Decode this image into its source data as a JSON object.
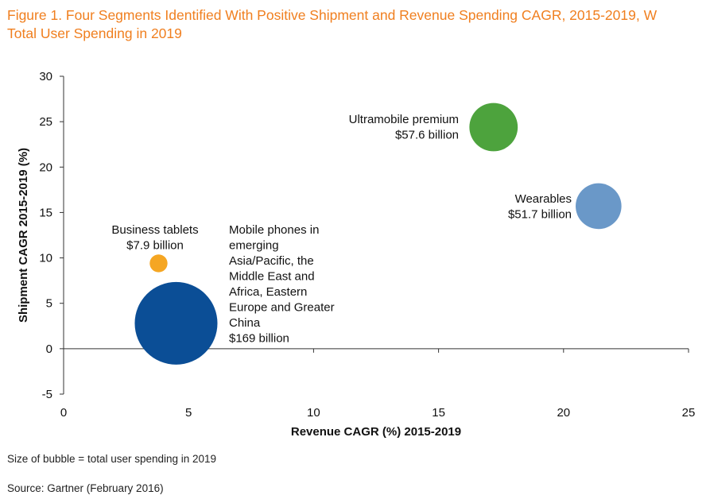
{
  "title_line1": "Figure 1. Four Segments Identified With Positive Shipment and Revenue Spending CAGR, 2015-2019, W",
  "title_line2": "Total User Spending in 2019",
  "note": "Size of bubble = total user spending in 2019",
  "source": "Source: Gartner (February 2016)",
  "chart_data": {
    "type": "scatter",
    "subtype": "bubble",
    "xlabel": "Revenue CAGR (%) 2015-2019",
    "ylabel": "Shipment CAGR 2015-2019 (%)",
    "xlim": [
      0,
      25
    ],
    "ylim": [
      -5,
      30
    ],
    "xticks": [
      "0",
      "5",
      "10",
      "15",
      "20",
      "25"
    ],
    "yticks": [
      "-5",
      "0",
      "5",
      "10",
      "15",
      "20",
      "25",
      "30"
    ],
    "grid": false,
    "series": [
      {
        "label_lines": [
          "Business tablets",
          "$7.9 billion"
        ],
        "x": 3.8,
        "y": 9.4,
        "size": 7.9,
        "color": "#f5a623"
      },
      {
        "label_lines": [
          "Mobile phones in",
          "emerging",
          "Asia/Pacific, the",
          "Middle East and",
          "Africa, Eastern",
          "Europe and Greater",
          "China",
          "$169 billion"
        ],
        "x": 4.5,
        "y": 2.8,
        "size": 169,
        "color": "#0b4e96"
      },
      {
        "label_lines": [
          "Ultramobile premium",
          "$57.6 billion"
        ],
        "x": 17.2,
        "y": 24.4,
        "size": 57.6,
        "color": "#4da33d"
      },
      {
        "label_lines": [
          "Wearables",
          "$51.7 billion"
        ],
        "x": 21.4,
        "y": 15.7,
        "size": 51.7,
        "color": "#6a98c8"
      }
    ]
  }
}
